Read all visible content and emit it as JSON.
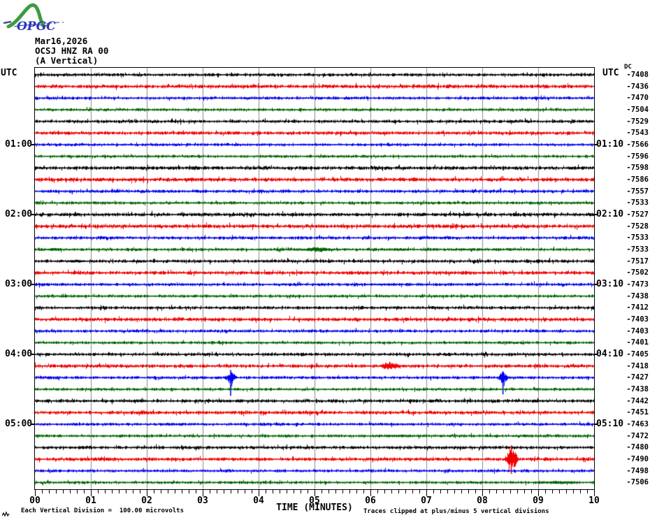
{
  "logo": {
    "text": "OPGC"
  },
  "header": {
    "date": "Mar16,2026",
    "station": "OCSJ HNZ RA 00",
    "component": "(A Vertical)"
  },
  "axis": {
    "utc_left": "UTC",
    "utc_right": "UTC",
    "dc_header": "DC",
    "x_title": "TIME (MINUTES)",
    "x_tick_labels": [
      "00",
      "01",
      "02",
      "03",
      "04",
      "05",
      "06",
      "07",
      "08",
      "09",
      "10"
    ],
    "left_time_labels": [
      {
        "row": 7,
        "label": "01:00"
      },
      {
        "row": 13,
        "label": "02:00"
      },
      {
        "row": 19,
        "label": "03:00"
      },
      {
        "row": 25,
        "label": "04:00"
      },
      {
        "row": 31,
        "label": "05:00"
      }
    ],
    "right_time_labels": [
      {
        "row": 7,
        "label": "01:10"
      },
      {
        "row": 13,
        "label": "02:10"
      },
      {
        "row": 19,
        "label": "03:10"
      },
      {
        "row": 25,
        "label": "04:10"
      },
      {
        "row": 31,
        "label": "05:10"
      }
    ]
  },
  "footer": {
    "scale_note": "Each Vertical Division =  100.00 microvolts",
    "clip_note": "Traces clipped at plus/minus 5 vertical divisions"
  },
  "colors": {
    "black": "#000000",
    "red": "#f00000",
    "blue": "#0000f0",
    "green": "#006600",
    "grid": "#8c8c8c",
    "logo_green": "#3d9c3d",
    "logo_blue": "#2a35b8"
  },
  "chart_data": {
    "type": "line",
    "subtype": "helicorder",
    "title": "OCSJ HNZ RA 00 (A Vertical) Mar16,2026",
    "xlabel": "TIME (MINUTES)",
    "x_range": [
      0,
      10
    ],
    "minutes_per_line": 10,
    "grid": "vertical-every-minute",
    "minor_tick_minutes": 0.125,
    "scale_microvolts_per_division": 100.0,
    "clip_divisions": 5,
    "rows": [
      {
        "start": "00:00",
        "end": "00:10",
        "color": "black",
        "dc": "-7408",
        "noise": 1.0,
        "events": []
      },
      {
        "start": "00:10",
        "end": "00:20",
        "color": "red",
        "dc": "-7436",
        "noise": 1.15,
        "events": []
      },
      {
        "start": "00:20",
        "end": "00:30",
        "color": "blue",
        "dc": "-7470",
        "noise": 0.9,
        "events": []
      },
      {
        "start": "00:30",
        "end": "00:40",
        "color": "green",
        "dc": "-7504",
        "noise": 0.9,
        "events": []
      },
      {
        "start": "00:40",
        "end": "00:50",
        "color": "black",
        "dc": "-7529",
        "noise": 1.0,
        "events": []
      },
      {
        "start": "00:50",
        "end": "01:00",
        "color": "red",
        "dc": "-7543",
        "noise": 1.1,
        "events": []
      },
      {
        "start": "01:00",
        "end": "01:10",
        "color": "blue",
        "dc": "-7566",
        "noise": 0.9,
        "events": []
      },
      {
        "start": "01:10",
        "end": "01:20",
        "color": "green",
        "dc": "-7596",
        "noise": 0.9,
        "events": []
      },
      {
        "start": "01:20",
        "end": "01:30",
        "color": "black",
        "dc": "-7598",
        "noise": 1.15,
        "events": []
      },
      {
        "start": "01:30",
        "end": "01:40",
        "color": "red",
        "dc": "-7586",
        "noise": 1.2,
        "events": []
      },
      {
        "start": "01:40",
        "end": "01:50",
        "color": "blue",
        "dc": "-7557",
        "noise": 1.0,
        "events": []
      },
      {
        "start": "01:50",
        "end": "02:00",
        "color": "green",
        "dc": "-7533",
        "noise": 0.95,
        "events": []
      },
      {
        "start": "02:00",
        "end": "02:10",
        "color": "black",
        "dc": "-7527",
        "noise": 1.15,
        "events": []
      },
      {
        "start": "02:10",
        "end": "02:20",
        "color": "red",
        "dc": "-7528",
        "noise": 1.2,
        "events": []
      },
      {
        "start": "02:20",
        "end": "02:30",
        "color": "blue",
        "dc": "-7533",
        "noise": 1.0,
        "events": [
          {
            "t": 7.2,
            "w": 1.0,
            "a": 1.2
          }
        ]
      },
      {
        "start": "02:30",
        "end": "02:40",
        "color": "green",
        "dc": "-7533",
        "noise": 0.95,
        "events": [
          {
            "t": 0.35,
            "w": 0.5,
            "a": 2.0
          },
          {
            "t": 5.05,
            "w": 0.8,
            "a": 3.5
          },
          {
            "t": 6.55,
            "w": 0.4,
            "a": 2.0
          },
          {
            "t": 7.6,
            "w": 0.6,
            "a": 1.5
          }
        ]
      },
      {
        "start": "02:40",
        "end": "02:50",
        "color": "black",
        "dc": "-7517",
        "noise": 1.05,
        "events": [
          {
            "t": 0.75,
            "w": 0.6,
            "a": 1.8
          }
        ]
      },
      {
        "start": "02:50",
        "end": "03:00",
        "color": "red",
        "dc": "-7502",
        "noise": 1.1,
        "events": []
      },
      {
        "start": "03:00",
        "end": "03:10",
        "color": "blue",
        "dc": "-7473",
        "noise": 0.95,
        "events": [
          {
            "t": 6.2,
            "w": 1.0,
            "a": 1.3
          }
        ]
      },
      {
        "start": "03:10",
        "end": "03:20",
        "color": "green",
        "dc": "-7438",
        "noise": 0.9,
        "events": []
      },
      {
        "start": "03:20",
        "end": "03:30",
        "color": "black",
        "dc": "-7412",
        "noise": 1.0,
        "events": []
      },
      {
        "start": "03:30",
        "end": "03:40",
        "color": "red",
        "dc": "-7403",
        "noise": 1.15,
        "events": []
      },
      {
        "start": "03:40",
        "end": "03:50",
        "color": "blue",
        "dc": "-7403",
        "noise": 0.95,
        "events": []
      },
      {
        "start": "03:50",
        "end": "04:00",
        "color": "green",
        "dc": "-7401",
        "noise": 0.9,
        "events": []
      },
      {
        "start": "04:00",
        "end": "04:10",
        "color": "black",
        "dc": "-7405",
        "noise": 1.0,
        "events": []
      },
      {
        "start": "04:10",
        "end": "04:20",
        "color": "red",
        "dc": "-7418",
        "noise": 1.1,
        "events": [
          {
            "t": 6.35,
            "w": 0.55,
            "a": 6.0
          }
        ]
      },
      {
        "start": "04:20",
        "end": "04:30",
        "color": "blue",
        "dc": "-7427",
        "noise": 0.95,
        "events": [
          {
            "t": 3.5,
            "w": 0.3,
            "a": 8.0,
            "spike_up": 11,
            "spike_down": 26
          },
          {
            "t": 8.37,
            "w": 0.24,
            "a": 9.0,
            "spike_up": 9,
            "spike_down": 24
          }
        ]
      },
      {
        "start": "04:30",
        "end": "04:40",
        "color": "green",
        "dc": "-7438",
        "noise": 0.9,
        "events": []
      },
      {
        "start": "04:40",
        "end": "04:50",
        "color": "black",
        "dc": "-7442",
        "noise": 1.05,
        "events": [
          {
            "t": 1.85,
            "w": 0.5,
            "a": 1.8
          }
        ]
      },
      {
        "start": "04:50",
        "end": "05:00",
        "color": "red",
        "dc": "-7451",
        "noise": 1.1,
        "events": []
      },
      {
        "start": "05:00",
        "end": "05:10",
        "color": "blue",
        "dc": "-7463",
        "noise": 0.9,
        "events": []
      },
      {
        "start": "05:10",
        "end": "05:20",
        "color": "green",
        "dc": "-7472",
        "noise": 0.9,
        "events": [
          {
            "t": 6.4,
            "w": 1.8,
            "a": 1.4
          }
        ]
      },
      {
        "start": "05:20",
        "end": "05:30",
        "color": "black",
        "dc": "-7480",
        "noise": 1.0,
        "events": []
      },
      {
        "start": "05:30",
        "end": "05:40",
        "color": "red",
        "dc": "-7490",
        "noise": 1.1,
        "events": [
          {
            "t": 8.52,
            "w": 0.33,
            "a": 16.0,
            "spike_up": 20,
            "spike_down": 21
          }
        ]
      },
      {
        "start": "05:40",
        "end": "05:50",
        "color": "blue",
        "dc": "-7498",
        "noise": 0.9,
        "events": []
      },
      {
        "start": "05:50",
        "end": "06:00",
        "color": "green",
        "dc": "-7506",
        "noise": 0.9,
        "events": [
          {
            "t": 4.0,
            "w": 3.0,
            "a": 0.8
          },
          {
            "t": 9.35,
            "w": 1.3,
            "a": 2.2
          }
        ]
      }
    ]
  }
}
